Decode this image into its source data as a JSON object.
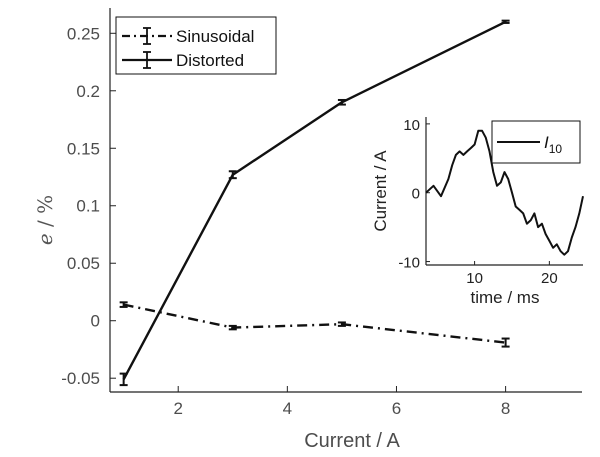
{
  "chart_data": [
    {
      "type": "line",
      "title": "",
      "xlabel": "Current / A",
      "ylabel_var": "e",
      "ylabel_unit": " / %",
      "xlim": [
        0.75,
        9.4
      ],
      "ylim": [
        -0.062,
        0.272
      ],
      "xticks": [
        2,
        4,
        6,
        8
      ],
      "yticks": [
        -0.05,
        0,
        0.05,
        0.1,
        0.15,
        0.2,
        0.25
      ],
      "xtick_labels": [
        "2",
        "4",
        "6",
        "8"
      ],
      "ytick_labels": [
        "-0.05",
        "0",
        "0.05",
        "0.1",
        "0.15",
        "0.2",
        "0.25"
      ],
      "grid": false,
      "legend_position": "top-left",
      "series": [
        {
          "name": "Sinusoidal",
          "style": "dash-dot",
          "color": "#111111",
          "x": [
            1,
            3,
            5,
            8
          ],
          "y": [
            0.014,
            -0.006,
            -0.003,
            -0.019
          ],
          "error": [
            0.002,
            0.0015,
            0.0015,
            0.0035
          ]
        },
        {
          "name": "Distorted",
          "style": "solid",
          "color": "#111111",
          "x": [
            1,
            3,
            5,
            8
          ],
          "y": [
            -0.051,
            0.127,
            0.19,
            0.26
          ],
          "error": [
            0.005,
            0.003,
            0.002,
            0.001
          ]
        }
      ]
    },
    {
      "type": "line",
      "title": "",
      "xlabel": "time / ms",
      "ylabel": "Current / A",
      "xlim": [
        3.5,
        24.5
      ],
      "ylim": [
        -10.5,
        11
      ],
      "xticks": [
        10,
        20
      ],
      "yticks": [
        -10,
        0,
        10
      ],
      "xtick_labels": [
        "10",
        "20"
      ],
      "ytick_labels": [
        "-10",
        "0",
        "10"
      ],
      "grid": false,
      "legend_position": "top-right",
      "series": [
        {
          "name_main": "I",
          "name_sub": "10",
          "style": "solid",
          "color": "#111111",
          "x": [
            3.5,
            4.5,
            5.5,
            6.5,
            7,
            7.5,
            8,
            8.5,
            9,
            9.5,
            10,
            10.5,
            11,
            11.5,
            12,
            12.5,
            13,
            13.5,
            14,
            14.5,
            15,
            15.5,
            16,
            16.5,
            17,
            17.5,
            18,
            18.5,
            19,
            19.5,
            20,
            20.5,
            21,
            21.5,
            22,
            22.5,
            23,
            23.5,
            24,
            24.5
          ],
          "y": [
            0,
            1,
            -0.5,
            2,
            4,
            5.5,
            6,
            5.5,
            6,
            6.5,
            7,
            9,
            9,
            8,
            6,
            3,
            1,
            1.5,
            3,
            2,
            0,
            -2,
            -2.5,
            -3,
            -4.5,
            -4,
            -3,
            -5,
            -4.5,
            -6,
            -7,
            -8,
            -7.5,
            -8.5,
            -9,
            -8.5,
            -6.5,
            -5,
            -3,
            -0.5
          ]
        }
      ]
    }
  ]
}
